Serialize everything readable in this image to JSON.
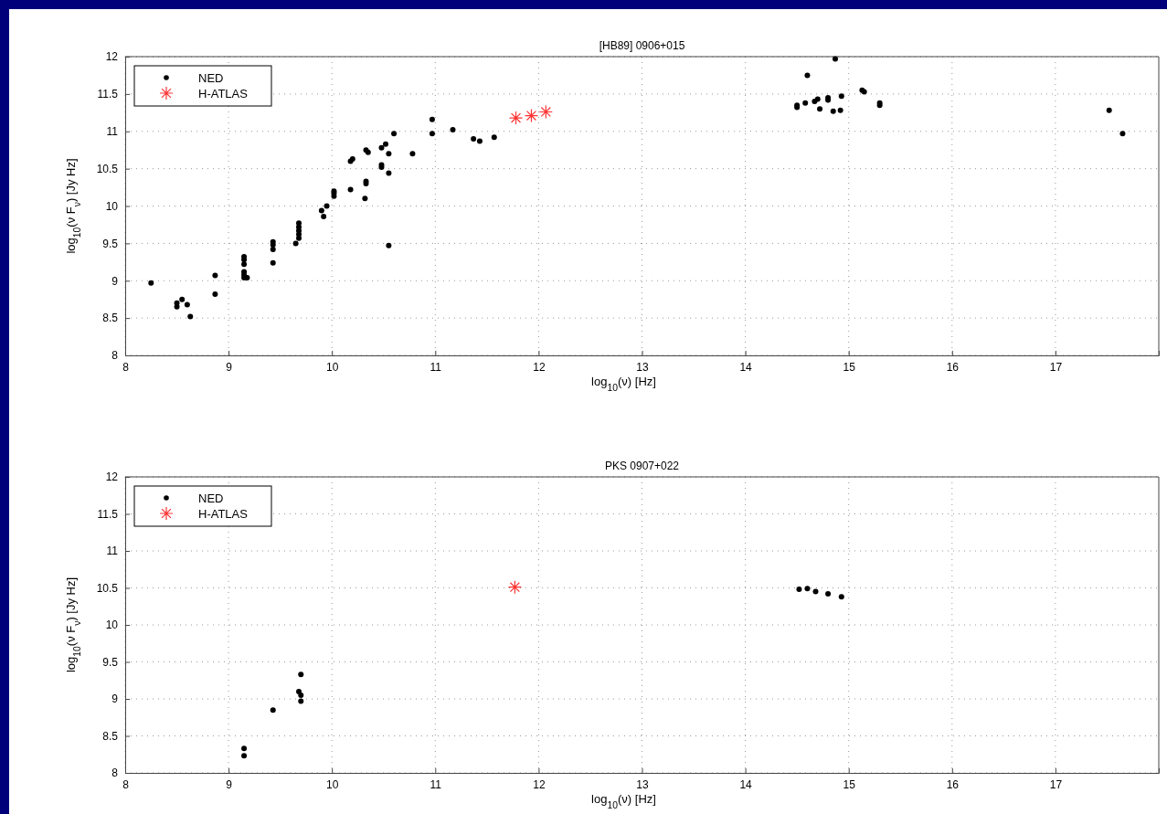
{
  "chart_data": [
    {
      "type": "scatter",
      "title": "[HB89] 0906+015",
      "xlabel": "log$_{10}$(ν) [Hz]",
      "ylabel": "log$_{10}$(ν F$_{ν}$) [Jy Hz]",
      "xlim": [
        8,
        18
      ],
      "ylim": [
        8,
        12
      ],
      "xticks": [
        8,
        9,
        10,
        11,
        12,
        13,
        14,
        15,
        16,
        17
      ],
      "yticks": [
        8,
        8.5,
        9,
        9.5,
        10,
        10.5,
        11,
        11.5,
        12
      ],
      "grid": true,
      "legend": "top left",
      "series": [
        {
          "name": "NED",
          "color": "#000000",
          "marker": "circle",
          "x": [
            8.25,
            8.5,
            8.5,
            8.55,
            8.6,
            8.63,
            8.87,
            8.87,
            9.15,
            9.15,
            9.15,
            9.15,
            9.15,
            9.15,
            9.18,
            9.43,
            9.43,
            9.43,
            9.43,
            9.65,
            9.68,
            9.68,
            9.68,
            9.68,
            9.68,
            9.9,
            9.92,
            9.95,
            10.02,
            10.02,
            10.02,
            10.18,
            10.18,
            10.2,
            10.32,
            10.33,
            10.33,
            10.33,
            10.35,
            10.48,
            10.48,
            10.48,
            10.52,
            10.55,
            10.55,
            10.55,
            10.6,
            10.78,
            10.97,
            10.97,
            11.17,
            11.37,
            11.43,
            11.57,
            14.5,
            14.5,
            14.58,
            14.6,
            14.67,
            14.7,
            14.72,
            14.8,
            14.8,
            14.85,
            14.87,
            14.92,
            14.93,
            15.13,
            15.15,
            15.3,
            15.3,
            17.52,
            17.65
          ],
          "values": [
            8.97,
            8.65,
            8.7,
            8.75,
            8.68,
            8.52,
            8.82,
            9.07,
            9.04,
            9.08,
            9.12,
            9.22,
            9.28,
            9.32,
            9.04,
            9.24,
            9.42,
            9.48,
            9.52,
            9.5,
            9.57,
            9.62,
            9.67,
            9.72,
            9.77,
            9.94,
            9.86,
            10.0,
            10.13,
            10.17,
            10.2,
            10.22,
            10.6,
            10.63,
            10.1,
            10.3,
            10.33,
            10.75,
            10.72,
            10.52,
            10.55,
            10.78,
            10.83,
            10.7,
            10.44,
            9.47,
            10.97,
            10.7,
            10.97,
            11.16,
            11.02,
            10.9,
            10.87,
            10.92,
            11.32,
            11.35,
            11.38,
            11.75,
            11.4,
            11.43,
            11.3,
            11.42,
            11.45,
            11.27,
            11.97,
            11.28,
            11.47,
            11.55,
            11.53,
            11.35,
            11.38,
            11.28,
            10.97
          ]
        },
        {
          "name": "H-ATLAS",
          "color": "#ff3333",
          "marker": "cross",
          "x": [
            11.78,
            11.93,
            12.07
          ],
          "values": [
            11.18,
            11.21,
            11.26
          ]
        }
      ]
    },
    {
      "type": "scatter",
      "title": "PKS 0907+022",
      "xlabel": "log$_{10}$(ν) [Hz]",
      "ylabel": "log$_{10}$(ν F$_{ν}$) [Jy Hz]",
      "xlim": [
        8,
        18
      ],
      "ylim": [
        8,
        12
      ],
      "xticks": [
        8,
        9,
        10,
        11,
        12,
        13,
        14,
        15,
        16,
        17
      ],
      "yticks": [
        8,
        8.5,
        9,
        9.5,
        10,
        10.5,
        11,
        11.5,
        12
      ],
      "grid": true,
      "legend": "top left",
      "series": [
        {
          "name": "NED",
          "color": "#000000",
          "marker": "circle",
          "x": [
            9.15,
            9.15,
            9.43,
            9.68,
            9.7,
            9.7,
            9.7,
            14.52,
            14.6,
            14.68,
            14.8,
            14.93
          ],
          "values": [
            8.33,
            8.23,
            8.85,
            9.1,
            9.05,
            8.97,
            9.33,
            10.48,
            10.49,
            10.45,
            10.42,
            10.38
          ]
        },
        {
          "name": "H-ATLAS",
          "color": "#ff3333",
          "marker": "cross",
          "x": [
            11.77
          ],
          "values": [
            10.51
          ]
        }
      ]
    }
  ]
}
